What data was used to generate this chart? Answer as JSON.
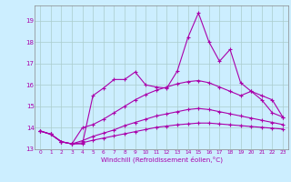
{
  "xlabel": "Windchill (Refroidissement éolien,°C)",
  "bg_color": "#cceeff",
  "line_color": "#aa00aa",
  "grid_color": "#aacccc",
  "spine_color": "#888888",
  "xlim": [
    -0.5,
    23.5
  ],
  "ylim": [
    13.0,
    19.7
  ],
  "yticks": [
    13,
    14,
    15,
    16,
    17,
    18,
    19
  ],
  "xticks": [
    0,
    1,
    2,
    3,
    4,
    5,
    6,
    7,
    8,
    9,
    10,
    11,
    12,
    13,
    14,
    15,
    16,
    17,
    18,
    19,
    20,
    21,
    22,
    23
  ],
  "line1_y": [
    13.85,
    13.7,
    13.35,
    13.25,
    13.25,
    15.5,
    15.85,
    16.25,
    16.25,
    16.6,
    16.0,
    15.9,
    15.85,
    16.65,
    18.2,
    19.35,
    18.0,
    17.1,
    17.65,
    16.1,
    15.7,
    15.3,
    14.7,
    14.5
  ],
  "line2_y": [
    13.85,
    13.7,
    13.35,
    13.25,
    14.0,
    14.15,
    14.4,
    14.7,
    15.0,
    15.3,
    15.55,
    15.75,
    15.9,
    16.05,
    16.15,
    16.2,
    16.1,
    15.9,
    15.7,
    15.5,
    15.7,
    15.5,
    15.3,
    14.5
  ],
  "line3_y": [
    13.85,
    13.7,
    13.35,
    13.25,
    13.4,
    13.6,
    13.75,
    13.9,
    14.1,
    14.25,
    14.4,
    14.55,
    14.65,
    14.75,
    14.85,
    14.9,
    14.85,
    14.75,
    14.65,
    14.55,
    14.45,
    14.35,
    14.25,
    14.15
  ],
  "line4_y": [
    13.85,
    13.7,
    13.35,
    13.25,
    13.3,
    13.42,
    13.52,
    13.62,
    13.72,
    13.82,
    13.92,
    14.02,
    14.08,
    14.14,
    14.18,
    14.22,
    14.22,
    14.18,
    14.14,
    14.1,
    14.06,
    14.02,
    13.98,
    13.94
  ]
}
